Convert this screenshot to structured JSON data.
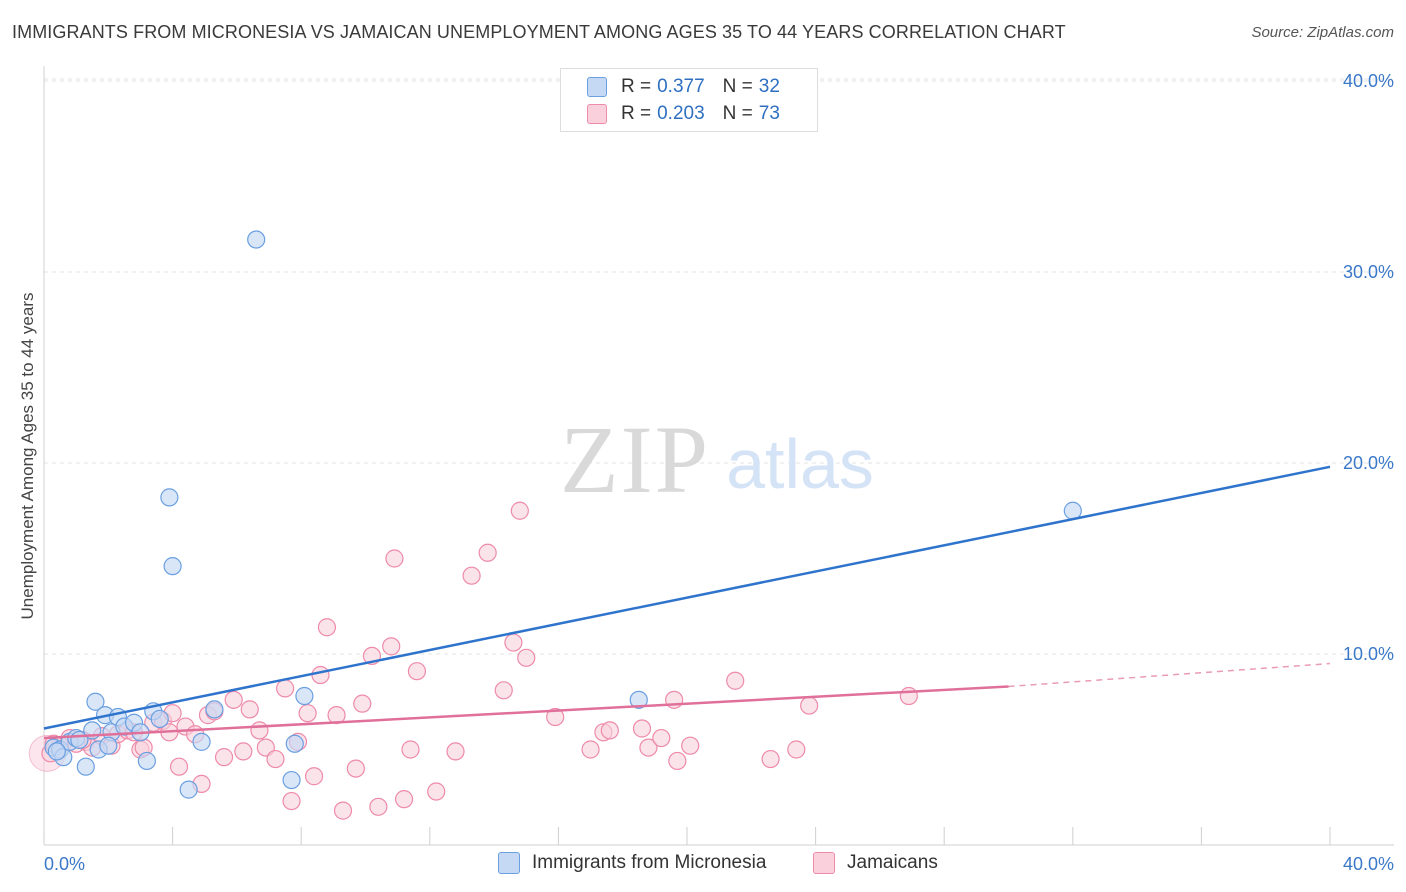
{
  "title": "IMMIGRANTS FROM MICRONESIA VS JAMAICAN UNEMPLOYMENT AMONG AGES 35 TO 44 YEARS CORRELATION CHART",
  "source": "Source: ZipAtlas.com",
  "watermark": {
    "zip": "ZIP",
    "atlas": "atlas"
  },
  "legend": {
    "rows": [
      {
        "r_label": "R =",
        "r_value": "0.377",
        "n_label": "N =",
        "n_value": "32"
      },
      {
        "r_label": "R =",
        "r_value": "0.203",
        "n_label": "N =",
        "n_value": "73"
      }
    ]
  },
  "chart_data": {
    "type": "scatter",
    "title": "IMMIGRANTS FROM MICRONESIA VS JAMAICAN UNEMPLOYMENT AMONG AGES 35 TO 44 YEARS CORRELATION CHART",
    "xlabel": "",
    "ylabel": "Unemployment Among Ages 35 to 44 years",
    "xlim": [
      0,
      40
    ],
    "ylim": [
      0,
      42
    ],
    "x_tick_labels": [
      "0.0%",
      "40.0%"
    ],
    "y_ticks": [
      10,
      20,
      30,
      40
    ],
    "y_tick_labels": [
      "10.0%",
      "20.0%",
      "30.0%",
      "40.0%"
    ],
    "grid": true,
    "legend_position": "top-center",
    "series": [
      {
        "name": "Immigrants from Micronesia",
        "color": "#6a9fe0",
        "fill": "#c5d9f5",
        "line_color": "#2f74cc",
        "trend": {
          "x": [
            0,
            40
          ],
          "y": [
            6.1,
            19.8
          ]
        },
        "points": [
          [
            0.3,
            5.1
          ],
          [
            0.5,
            5.0
          ],
          [
            0.6,
            4.6
          ],
          [
            0.8,
            5.4
          ],
          [
            1.0,
            5.6
          ],
          [
            1.1,
            5.5
          ],
          [
            1.3,
            4.1
          ],
          [
            1.5,
            6.0
          ],
          [
            1.6,
            7.5
          ],
          [
            1.7,
            5.0
          ],
          [
            1.9,
            6.8
          ],
          [
            2.1,
            5.9
          ],
          [
            2.3,
            6.7
          ],
          [
            2.5,
            6.2
          ],
          [
            2.8,
            6.4
          ],
          [
            3.0,
            5.9
          ],
          [
            3.2,
            4.4
          ],
          [
            3.4,
            7.0
          ],
          [
            3.6,
            6.6
          ],
          [
            3.9,
            18.2
          ],
          [
            4.0,
            14.6
          ],
          [
            4.5,
            2.9
          ],
          [
            4.9,
            5.4
          ],
          [
            5.3,
            7.1
          ],
          [
            6.6,
            31.7
          ],
          [
            7.8,
            5.3
          ],
          [
            8.1,
            7.8
          ],
          [
            7.7,
            3.4
          ],
          [
            18.5,
            7.6
          ],
          [
            32.0,
            17.5
          ],
          [
            0.4,
            4.9
          ],
          [
            2.0,
            5.2
          ]
        ]
      },
      {
        "name": "Jamaicans",
        "color": "#ee8aaa",
        "fill": "#f9d0dc",
        "line_color": "#e0709a",
        "trend": {
          "x": [
            0,
            30
          ],
          "y": [
            5.6,
            8.3
          ]
        },
        "trend_dashed": {
          "x": [
            30,
            40
          ],
          "y": [
            8.3,
            9.5
          ]
        },
        "points": [
          [
            0.2,
            4.8
          ],
          [
            0.5,
            5.2
          ],
          [
            0.8,
            5.6
          ],
          [
            1.0,
            5.3
          ],
          [
            1.3,
            5.4
          ],
          [
            1.5,
            5.1
          ],
          [
            1.8,
            5.7
          ],
          [
            2.1,
            5.2
          ],
          [
            2.3,
            5.8
          ],
          [
            2.6,
            6.0
          ],
          [
            2.8,
            5.9
          ],
          [
            3.0,
            5.0
          ],
          [
            3.1,
            5.1
          ],
          [
            3.4,
            6.4
          ],
          [
            3.7,
            6.5
          ],
          [
            3.9,
            5.9
          ],
          [
            4.0,
            6.9
          ],
          [
            4.2,
            4.1
          ],
          [
            4.4,
            6.2
          ],
          [
            4.7,
            5.8
          ],
          [
            4.9,
            3.2
          ],
          [
            5.1,
            6.8
          ],
          [
            5.3,
            7.0
          ],
          [
            5.6,
            4.6
          ],
          [
            5.9,
            7.6
          ],
          [
            6.2,
            4.9
          ],
          [
            6.4,
            7.1
          ],
          [
            6.7,
            6.0
          ],
          [
            6.9,
            5.1
          ],
          [
            7.2,
            4.5
          ],
          [
            7.5,
            8.2
          ],
          [
            7.7,
            2.3
          ],
          [
            7.9,
            5.4
          ],
          [
            8.2,
            6.9
          ],
          [
            8.4,
            3.6
          ],
          [
            8.6,
            8.9
          ],
          [
            8.8,
            11.4
          ],
          [
            9.1,
            6.8
          ],
          [
            9.3,
            1.8
          ],
          [
            9.7,
            4.0
          ],
          [
            9.9,
            7.4
          ],
          [
            10.2,
            9.9
          ],
          [
            10.4,
            2.0
          ],
          [
            10.8,
            10.4
          ],
          [
            10.9,
            15.0
          ],
          [
            11.2,
            2.4
          ],
          [
            11.4,
            5.0
          ],
          [
            11.6,
            9.1
          ],
          [
            12.2,
            2.8
          ],
          [
            12.8,
            4.9
          ],
          [
            13.3,
            14.1
          ],
          [
            13.8,
            15.3
          ],
          [
            14.3,
            8.1
          ],
          [
            14.6,
            10.6
          ],
          [
            14.8,
            17.5
          ],
          [
            15.0,
            9.8
          ],
          [
            15.9,
            6.7
          ],
          [
            17.0,
            5.0
          ],
          [
            17.4,
            5.9
          ],
          [
            17.6,
            6.0
          ],
          [
            18.6,
            6.1
          ],
          [
            18.8,
            5.1
          ],
          [
            19.2,
            5.6
          ],
          [
            19.6,
            7.6
          ],
          [
            19.7,
            4.4
          ],
          [
            20.1,
            5.2
          ],
          [
            21.5,
            8.6
          ],
          [
            22.6,
            4.5
          ],
          [
            23.4,
            5.0
          ],
          [
            23.8,
            7.3
          ],
          [
            26.9,
            7.8
          ],
          [
            0.3,
            5.3
          ],
          [
            1.2,
            5.5
          ]
        ]
      }
    ]
  },
  "bottom_legend": {
    "items": [
      "Immigrants from Micronesia",
      "Jamaicans"
    ]
  }
}
